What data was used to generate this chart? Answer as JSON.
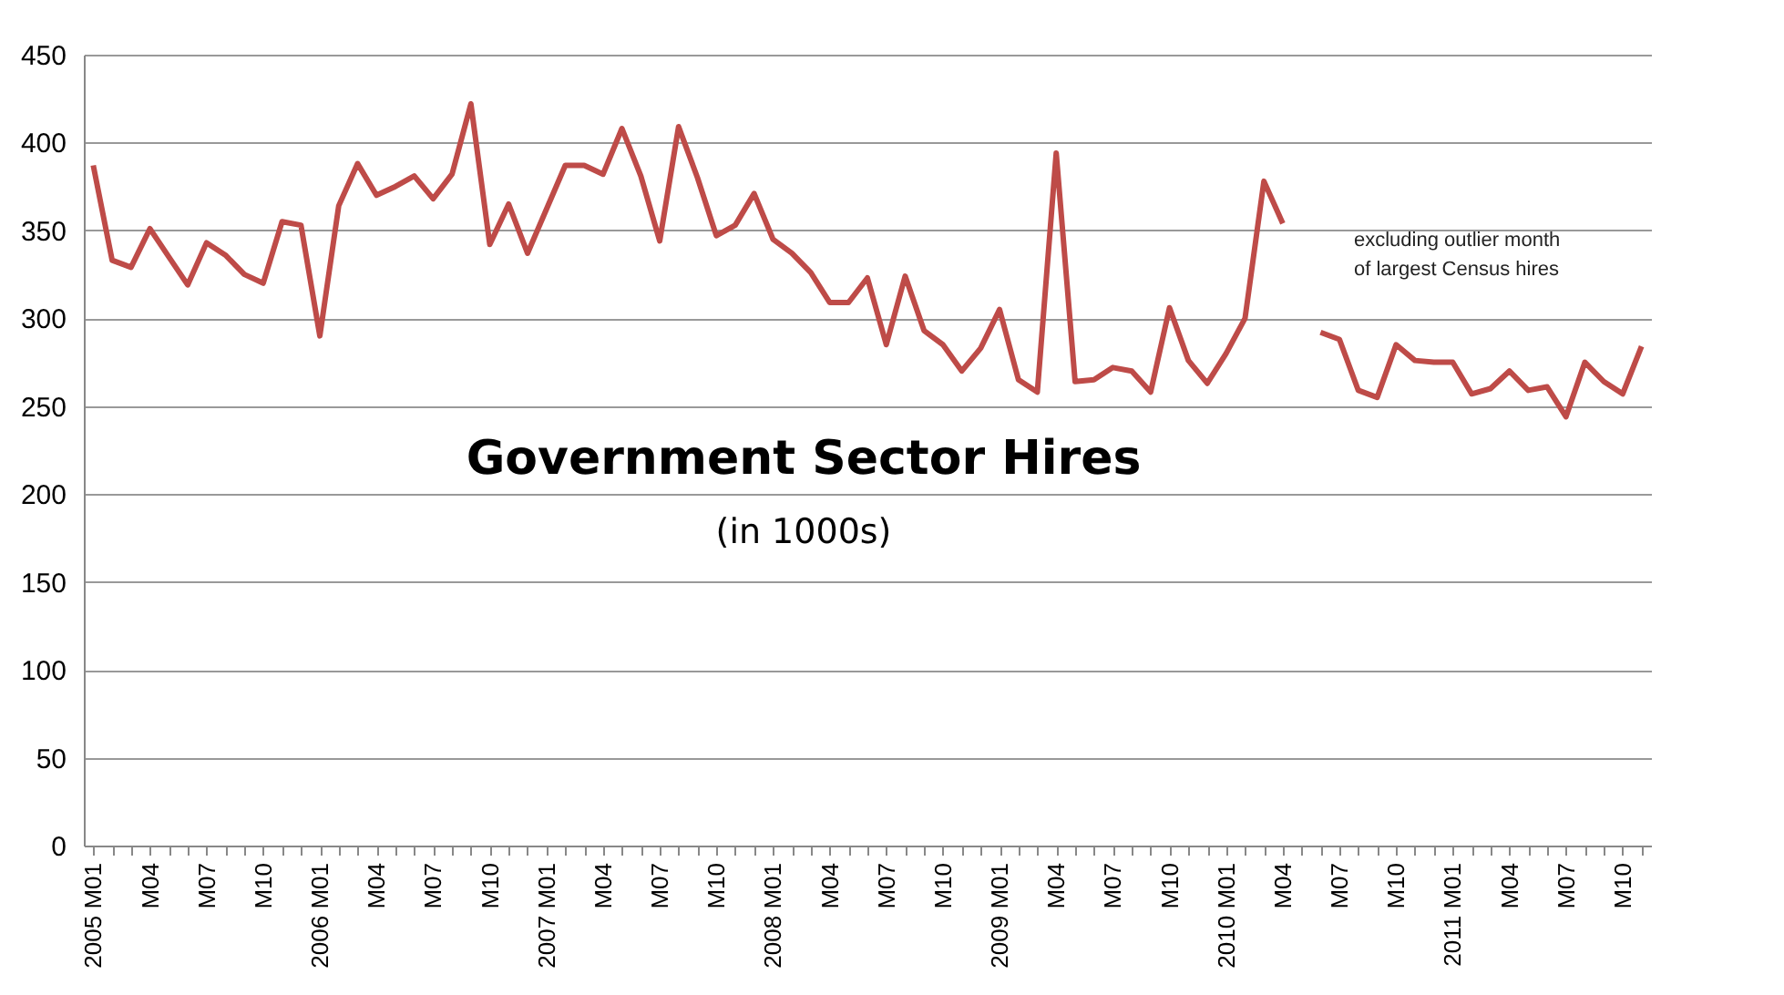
{
  "chart_data": {
    "type": "line",
    "title": "Government Sector Hires",
    "subtitle": "(in 1000s)",
    "annotations": [
      {
        "text": "excluding outlier month of largest Census hires"
      }
    ],
    "categories": [
      "2005 M01",
      null,
      null,
      "M04",
      null,
      null,
      "M07",
      null,
      null,
      "M10",
      null,
      null,
      "2006 M01",
      null,
      null,
      "M04",
      null,
      null,
      "M07",
      null,
      null,
      "M10",
      null,
      null,
      "2007 M01",
      null,
      null,
      "M04",
      null,
      null,
      "M07",
      null,
      null,
      "M10",
      null,
      null,
      "2008 M01",
      null,
      null,
      "M04",
      null,
      null,
      "M07",
      null,
      null,
      "M10",
      null,
      null,
      "2009 M01",
      null,
      null,
      "M04",
      null,
      null,
      "M07",
      null,
      null,
      "M10",
      null,
      null,
      "2010 M01",
      null,
      null,
      "M04",
      null,
      null,
      "M07",
      null,
      null,
      "M10",
      null,
      null,
      "2011 M01",
      null,
      null,
      "M04",
      null,
      null,
      "M07",
      null,
      null,
      "M10",
      null
    ],
    "series": [
      {
        "color": "#be4b48",
        "values": [
          387,
          333,
          329,
          351,
          335,
          319,
          343,
          336,
          325,
          320,
          355,
          353,
          290,
          364,
          388,
          370,
          375,
          381,
          368,
          382,
          422,
          342,
          365,
          337,
          362,
          387,
          387,
          382,
          408,
          381,
          344,
          409,
          380,
          347,
          353,
          371,
          345,
          337,
          326,
          309,
          309,
          323,
          285,
          324,
          293,
          285,
          270,
          283,
          305,
          265,
          258,
          394,
          264,
          265,
          272,
          270,
          258,
          306,
          276,
          263,
          280,
          300,
          378,
          354,
          null,
          292,
          288,
          259,
          255,
          285,
          276,
          275,
          275,
          257,
          260,
          270,
          259,
          261,
          244,
          275,
          264,
          257,
          284
        ]
      }
    ],
    "ylim": [
      0,
      450
    ],
    "yticks": [
      0,
      50,
      100,
      150,
      200,
      250,
      300,
      350,
      400,
      450
    ],
    "grid": "y",
    "marker": "none",
    "line_style": "solid"
  }
}
